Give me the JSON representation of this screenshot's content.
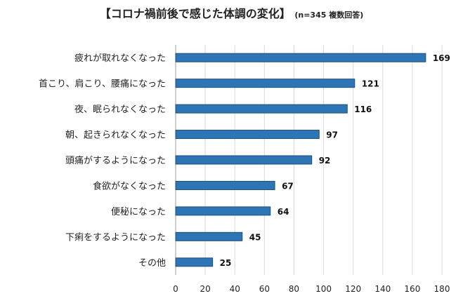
{
  "chart_data": {
    "type": "bar",
    "orientation": "horizontal",
    "title": "【コロナ禍前後で感じた体調の変化】",
    "subtitle": "(n=345 複数回答)",
    "categories": [
      "疲れが取れなくなった",
      "首こり、肩こり、腰痛になった",
      "夜、眠られなくなった",
      "朝、起きられなくなった",
      "頭痛がするようになった",
      "食欲がなくなった",
      "便秘になった",
      "下痢をするようになった",
      "その他"
    ],
    "values": [
      169,
      121,
      116,
      97,
      92,
      67,
      64,
      45,
      25
    ],
    "value_labels": [
      "169",
      "121",
      "116",
      "97",
      "92",
      "67",
      "64",
      "45",
      "25"
    ],
    "xlim": [
      0,
      180
    ],
    "x_ticks": [
      "0",
      "20",
      "40",
      "60",
      "80",
      "100",
      "120",
      "140",
      "160",
      "180"
    ],
    "grid": "vertical",
    "bar_color": "#2e75b6",
    "bar_edge_color": "#1f4e79"
  }
}
